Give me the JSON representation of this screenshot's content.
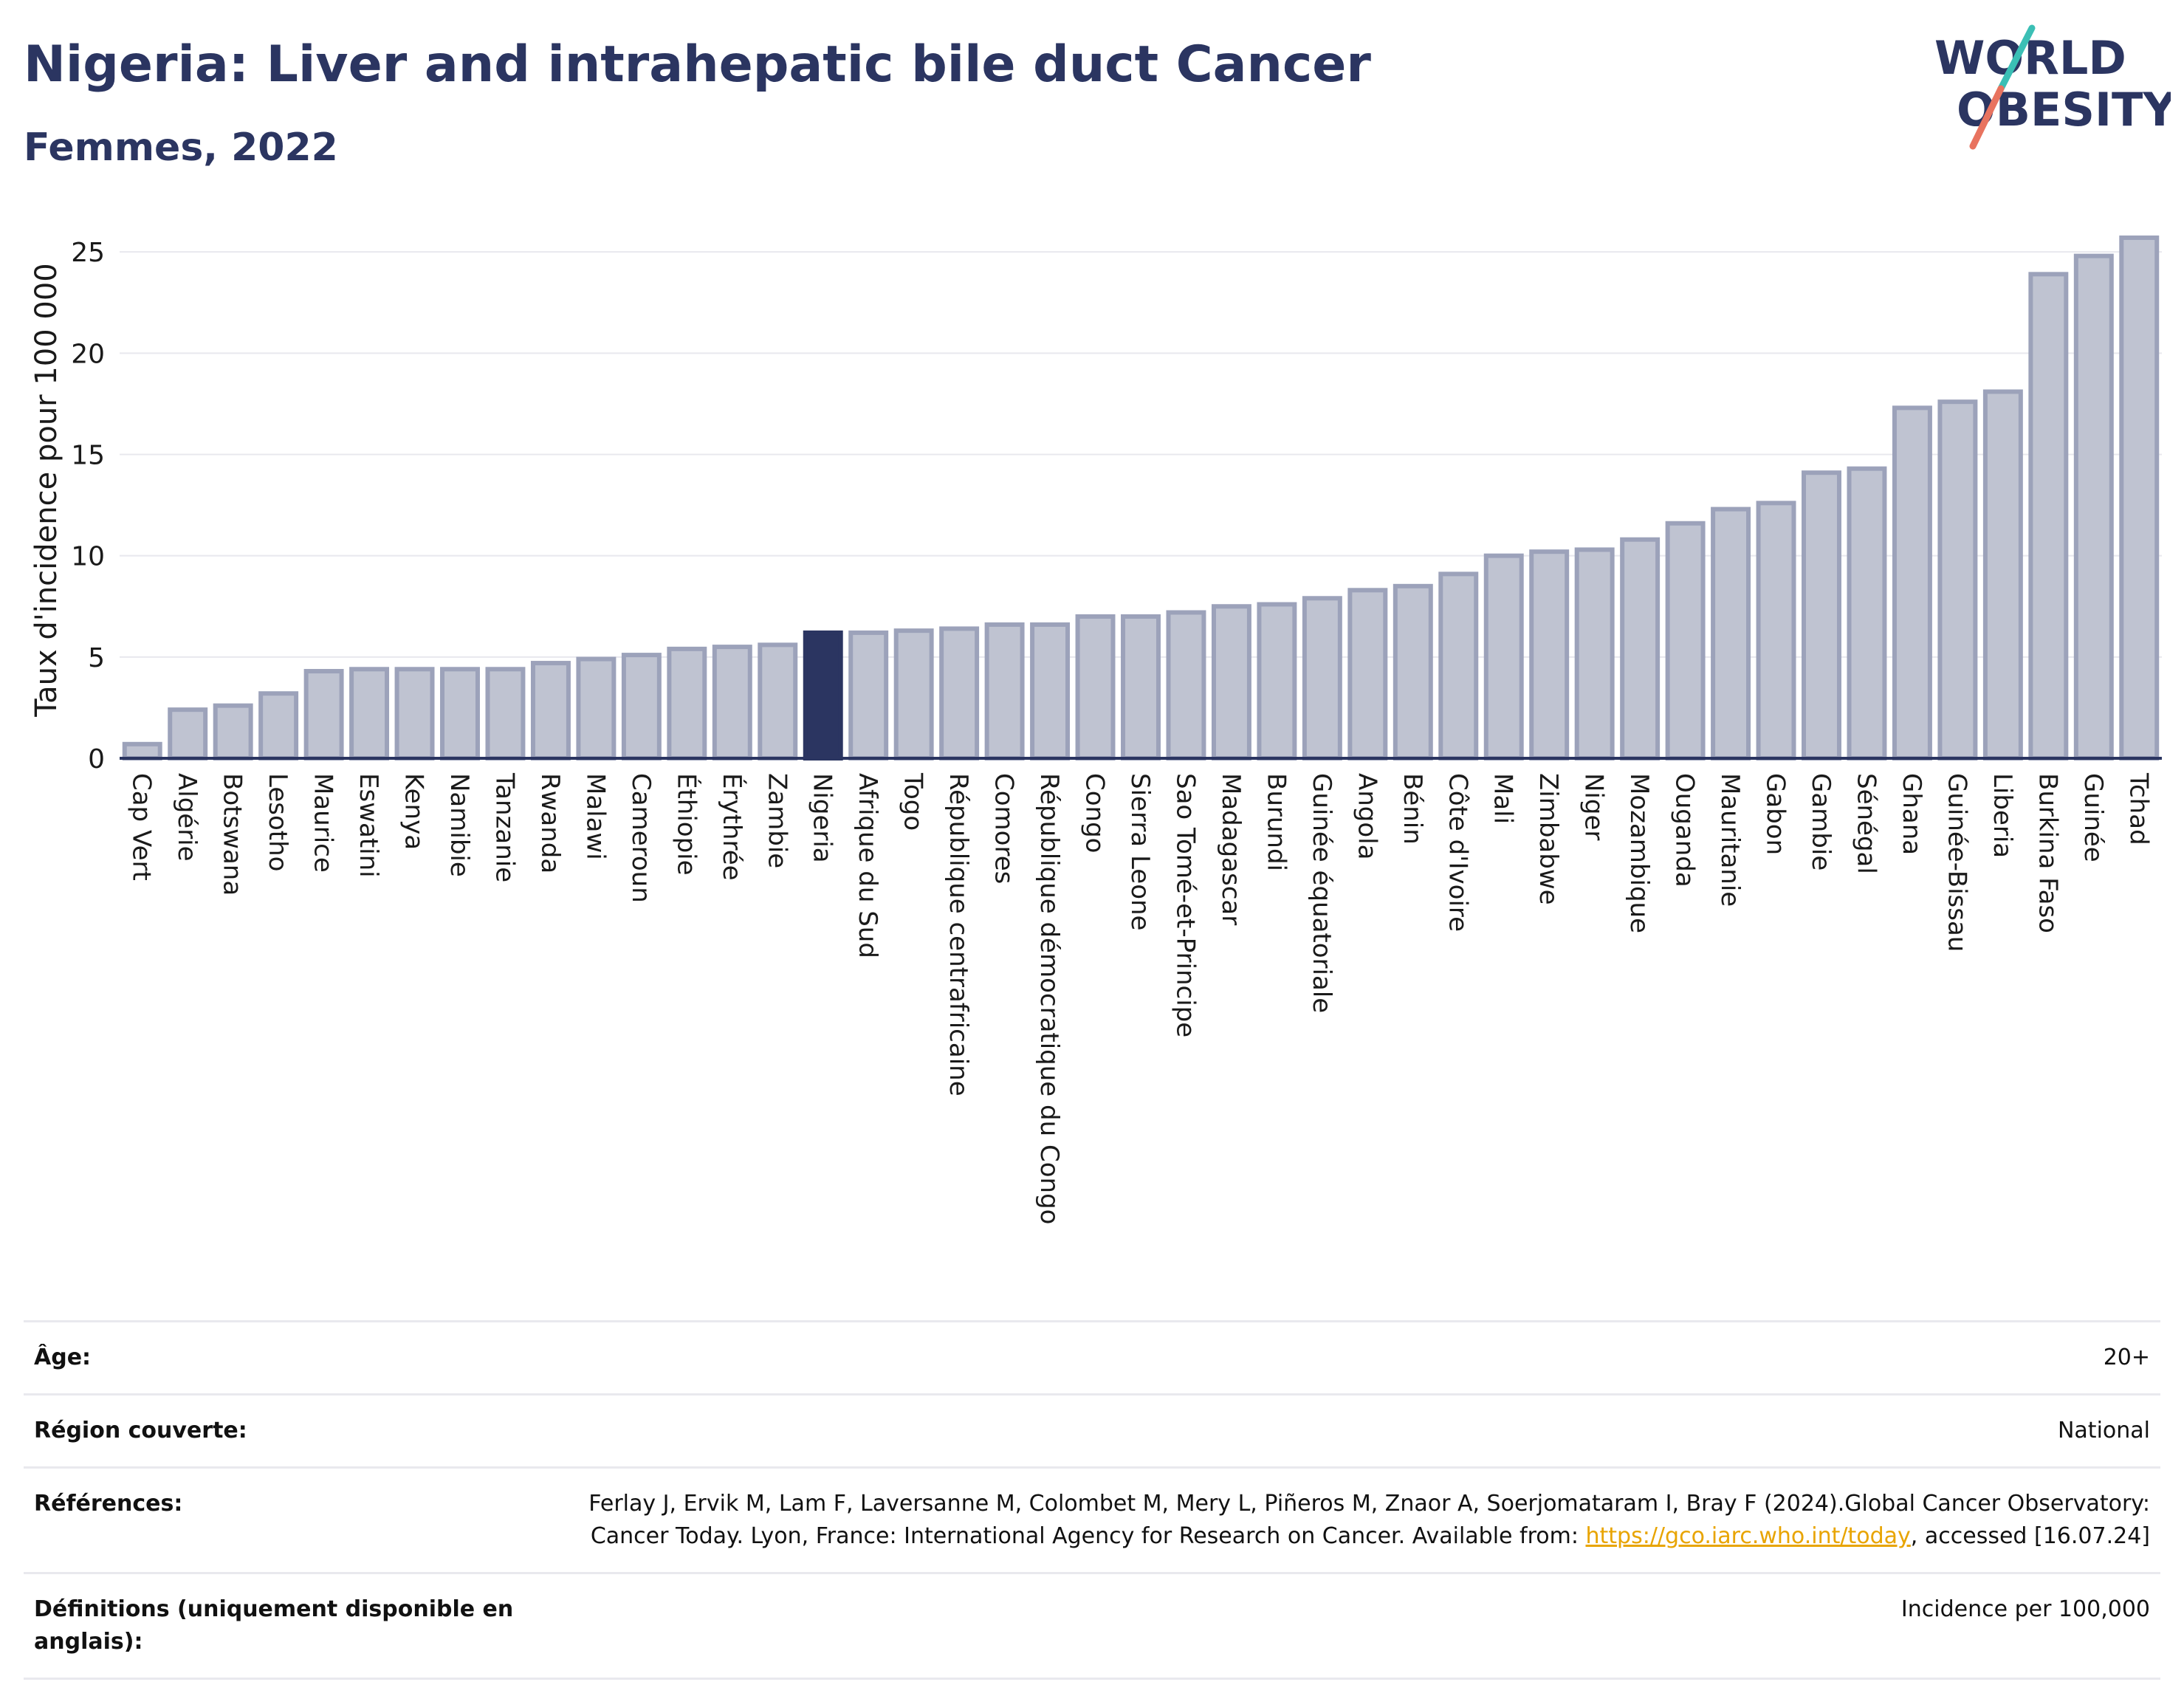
{
  "header": {
    "title": "Nigeria: Liver and intrahepatic bile duct Cancer",
    "subtitle": "Femmes, 2022"
  },
  "logo": {
    "line1": "WORLD",
    "line2": "OBESITY"
  },
  "colors": {
    "bar": "#bfc3d1",
    "bar_edge": "#9ca2ba",
    "highlight": "#2b3561",
    "grid": "#e8e8ee",
    "logo_teal": "#3bbfb5",
    "logo_coral": "#e8735f"
  },
  "chart_data": {
    "type": "bar",
    "ylabel": "Taux d'incidence pour 100 000",
    "ylim": [
      0,
      26.5
    ],
    "yticks": [
      0,
      5,
      10,
      15,
      20,
      25
    ],
    "highlight": "Nigeria",
    "grid": true,
    "categories": [
      "Cap Vert",
      "Algérie",
      "Botswana",
      "Lesotho",
      "Maurice",
      "Eswatini",
      "Kenya",
      "Namibie",
      "Tanzanie",
      "Rwanda",
      "Malawi",
      "Cameroun",
      "Éthiopie",
      "Érythrée",
      "Zambie",
      "Nigeria",
      "Afrique du Sud",
      "Togo",
      "République centrafricaine",
      "Comores",
      "République démocratique du Congo",
      "Congo",
      "Sierra Leone",
      "Sao Tomé-et-Principe",
      "Madagascar",
      "Burundi",
      "Guinée équatoriale",
      "Angola",
      "Bénin",
      "Côte d'Ivoire",
      "Mali",
      "Zimbabwe",
      "Niger",
      "Mozambique",
      "Ouganda",
      "Mauritanie",
      "Gabon",
      "Gambie",
      "Sénégal",
      "Ghana",
      "Guinée-Bissau",
      "Liberia",
      "Burkina Faso",
      "Guinée",
      "Tchad"
    ],
    "values": [
      0.7,
      2.4,
      2.6,
      3.2,
      4.3,
      4.4,
      4.4,
      4.4,
      4.4,
      4.7,
      4.9,
      5.1,
      5.4,
      5.5,
      5.6,
      6.2,
      6.2,
      6.3,
      6.4,
      6.6,
      6.6,
      7.0,
      7.0,
      7.2,
      7.5,
      7.6,
      7.9,
      8.3,
      8.5,
      9.1,
      10.0,
      10.2,
      10.3,
      10.8,
      11.6,
      12.3,
      12.6,
      14.1,
      14.3,
      17.3,
      17.6,
      18.1,
      23.9,
      24.8,
      25.7
    ]
  },
  "meta": {
    "age_label": "Âge:",
    "age_value": "20+",
    "region_label": "Région couverte:",
    "region_value": "National",
    "ref_label": "Références:",
    "ref_text_1": "Ferlay J, Ervik M, Lam F, Laversanne M, Colombet M, Mery L, Piñeros M, Znaor A, Soerjomataram I, Bray F (2024).Global Cancer Observatory: Cancer Today. Lyon, France: International Agency for Research on Cancer. Available from: ",
    "ref_link": "https://gco.iarc.who.int/today",
    "ref_text_2": ", accessed [16.07.24]",
    "def_label": "Définitions (uniquement disponible en anglais):",
    "def_value": "Incidence per 100,000"
  }
}
